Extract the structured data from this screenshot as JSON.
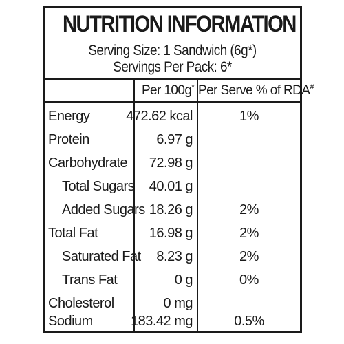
{
  "title": "NUTRITION INFORMATION",
  "serving_size": "Serving Size: 1 Sandwich (6g*)",
  "servings_per_pack": "Servings Per Pack: 6*",
  "columns": {
    "per100": "Per 100g",
    "per100_sup": "*",
    "per_serve": "Per Serve % of RDA",
    "per_serve_sup": "#"
  },
  "rows": [
    {
      "label": "Energy",
      "per100": "472.62 kcal",
      "rda": "1%"
    },
    {
      "label": "Protein",
      "per100": "6.97 g",
      "rda": ""
    },
    {
      "label": "Carbohydrate",
      "per100": "72.98 g",
      "rda": ""
    },
    {
      "label": "Total Sugars",
      "per100": "40.01 g",
      "rda": ""
    },
    {
      "label": "Added Sugars",
      "per100": "18.26 g",
      "rda": "2%"
    },
    {
      "label": "Total Fat",
      "per100": "16.98 g",
      "rda": "2%"
    },
    {
      "label": "Saturated Fat",
      "per100": "8.23 g",
      "rda": "2%"
    },
    {
      "label": "Trans Fat",
      "per100": "0 g",
      "rda": "0%"
    },
    {
      "label": "Cholesterol",
      "per100": "0 mg",
      "rda": ""
    },
    {
      "label": "Sodium",
      "per100": "183.42 mg",
      "rda": "0.5%"
    }
  ]
}
